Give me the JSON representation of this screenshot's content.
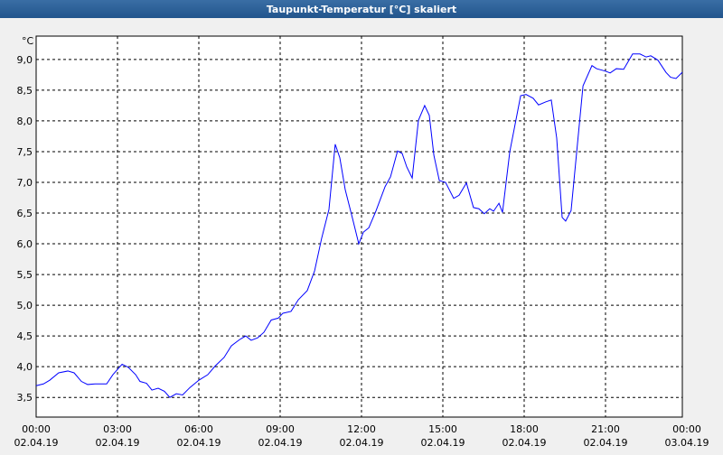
{
  "chart_data": {
    "type": "line",
    "title": "Taupunkt-Temperatur [°C] skaliert",
    "y_label": "°C",
    "x": [
      0,
      0.27,
      0.5,
      0.83,
      1.17,
      1.4,
      1.67,
      1.9,
      2.17,
      2.6,
      2.83,
      3.17,
      3.4,
      3.67,
      3.83,
      4.07,
      4.27,
      4.5,
      4.73,
      4.93,
      5.17,
      5.4,
      5.67,
      6.0,
      6.33,
      6.6,
      6.93,
      7.2,
      7.5,
      7.73,
      7.93,
      8.17,
      8.4,
      8.67,
      8.93,
      9.1,
      9.4,
      9.67,
      10.0,
      10.27,
      10.53,
      10.8,
      11.03,
      11.2,
      11.4,
      11.67,
      11.9,
      12.07,
      12.27,
      12.53,
      12.87,
      13.07,
      13.33,
      13.5,
      13.67,
      13.87,
      14.1,
      14.33,
      14.5,
      14.67,
      14.87,
      15.1,
      15.4,
      15.6,
      15.87,
      16.13,
      16.33,
      16.53,
      16.73,
      16.87,
      17.07,
      17.2,
      17.47,
      17.87,
      18.07,
      18.33,
      18.53,
      18.8,
      19.0,
      19.2,
      19.4,
      19.53,
      19.73,
      20.17,
      20.5,
      20.67,
      21.0,
      21.17,
      21.4,
      21.67,
      22.0,
      22.27,
      22.5,
      22.67,
      22.93,
      23.23,
      23.4,
      23.6,
      23.83
    ],
    "series": [
      {
        "color": "#0000ff",
        "values": [
          3.69,
          3.72,
          3.78,
          3.9,
          3.93,
          3.9,
          3.76,
          3.71,
          3.72,
          3.72,
          3.87,
          4.04,
          3.99,
          3.87,
          3.76,
          3.73,
          3.62,
          3.65,
          3.6,
          3.5,
          3.56,
          3.54,
          3.66,
          3.78,
          3.87,
          4.01,
          4.15,
          4.34,
          4.44,
          4.5,
          4.43,
          4.47,
          4.56,
          4.76,
          4.79,
          4.87,
          4.9,
          5.09,
          5.24,
          5.56,
          6.09,
          6.56,
          7.62,
          7.4,
          6.88,
          6.41,
          6.0,
          6.19,
          6.26,
          6.53,
          6.93,
          7.09,
          7.51,
          7.47,
          7.25,
          7.07,
          8.01,
          8.25,
          8.09,
          7.44,
          7.03,
          7.0,
          6.74,
          6.79,
          6.99,
          6.59,
          6.57,
          6.49,
          6.57,
          6.53,
          6.66,
          6.51,
          7.5,
          8.41,
          8.43,
          8.37,
          8.26,
          8.31,
          8.34,
          7.72,
          6.43,
          6.37,
          6.54,
          8.57,
          8.9,
          8.85,
          8.81,
          8.78,
          8.85,
          8.84,
          9.09,
          9.09,
          9.04,
          9.06,
          8.99,
          8.79,
          8.71,
          8.69,
          8.79
        ]
      }
    ],
    "xlim": [
      0,
      24
    ],
    "xticks": [
      {
        "value": 0,
        "label": "00:00"
      },
      {
        "value": 3,
        "label": "03:00"
      },
      {
        "value": 6,
        "label": "06:00"
      },
      {
        "value": 9,
        "label": "09:00"
      },
      {
        "value": 12,
        "label": "12:00"
      },
      {
        "value": 15,
        "label": "15:00"
      },
      {
        "value": 18,
        "label": "18:00"
      },
      {
        "value": 21,
        "label": "21:00"
      },
      {
        "value": 24,
        "label": "00:00"
      }
    ],
    "xtick_dates": [
      "02.04.19",
      "02.04.19",
      "02.04.19",
      "02.04.19",
      "02.04.19",
      "02.04.19",
      "02.04.19",
      "02.04.19",
      "03.04.19"
    ],
    "ylim": [
      3.18,
      9.38
    ],
    "yticks": [
      {
        "value": 3.5,
        "label": "3,5"
      },
      {
        "value": 4,
        "label": "4,0"
      },
      {
        "value": 4.5,
        "label": "4,5"
      },
      {
        "value": 5,
        "label": "5,0"
      },
      {
        "value": 5.5,
        "label": "5,5"
      },
      {
        "value": 6,
        "label": "6,0"
      },
      {
        "value": 6.5,
        "label": "6,5"
      },
      {
        "value": 7,
        "label": "7,0"
      },
      {
        "value": 7.5,
        "label": "7,5"
      },
      {
        "value": 8,
        "label": "8,0"
      },
      {
        "value": 8.5,
        "label": "8,5"
      },
      {
        "value": 9,
        "label": "9,0"
      }
    ],
    "grid": true
  }
}
